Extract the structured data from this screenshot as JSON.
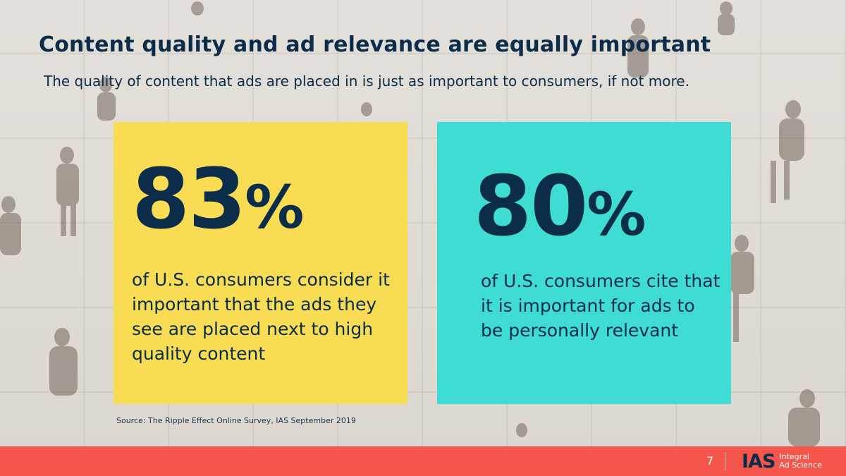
{
  "slide": {
    "title": "Content quality and ad relevance are equally important",
    "subtitle": "The quality of content that ads are placed in is just as important to consumers, if not more."
  },
  "cards": [
    {
      "value": "83",
      "unit": "%",
      "description": "of U.S. consumers consider it important that the ads they see are placed next to high quality content",
      "color": "#f8dc54"
    },
    {
      "value": "80",
      "unit": "%",
      "description": "of U.S. consumers cite that it is important for ads to be personally relevant",
      "color": "#3fdcd3"
    }
  ],
  "source": "Source: The Ripple Effect Online Survey, IAS September 2019",
  "footer": {
    "page_number": "7",
    "logo_mark": "IAS",
    "logo_line1": "Integral",
    "logo_line2": "Ad Science",
    "color": "#f5564c"
  },
  "colors": {
    "text_primary": "#0b2d4a"
  }
}
